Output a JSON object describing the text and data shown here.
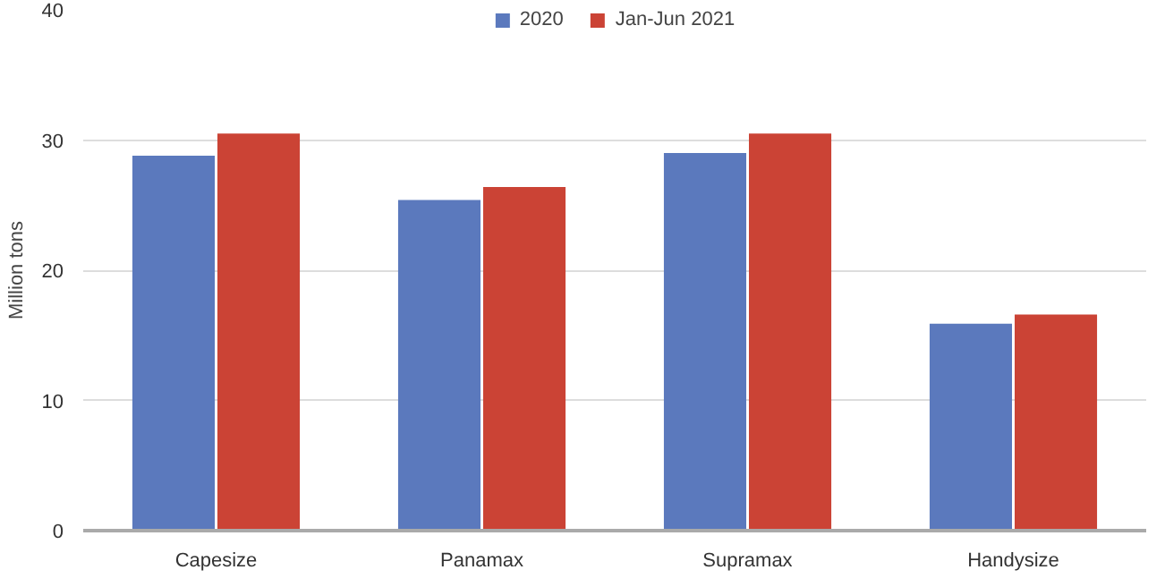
{
  "chart_data": {
    "type": "bar",
    "ylabel": "Million tons",
    "categories": [
      "Capesize",
      "Panamax",
      "Supramax",
      "Handysize"
    ],
    "series": [
      {
        "name": "2020",
        "color": "#5b79bd",
        "values": [
          28.8,
          25.4,
          29.0,
          15.9
        ]
      },
      {
        "name": "Jan-Jun 2021",
        "color": "#cb4335",
        "values": [
          30.5,
          26.4,
          30.5,
          16.6
        ]
      }
    ],
    "ylim": [
      0,
      40
    ],
    "yticks": [
      0,
      10,
      20,
      30,
      40
    ],
    "grid": "y",
    "legend": "top"
  }
}
